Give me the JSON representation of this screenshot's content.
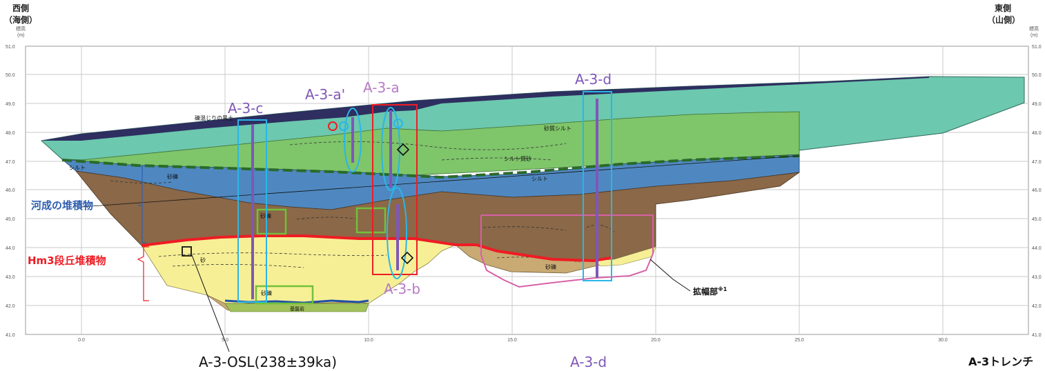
{
  "header": {
    "west_line1": "西側",
    "west_line2": "（海側）",
    "east_line1": "東側",
    "east_line2": "（山側）",
    "elev_label_line1": "標高",
    "elev_label_line2": "(m)"
  },
  "axes": {
    "y_ticks": [
      "51.0",
      "50.0",
      "49.0",
      "48.0",
      "47.0",
      "46.0",
      "45.0",
      "44.0",
      "43.0",
      "42.0",
      "41.0"
    ],
    "x_ticks": [
      "0.0",
      "5.0",
      "10.0",
      "15.0",
      "20.0",
      "25.0",
      "30.0"
    ]
  },
  "strata": {
    "black_soil": "礫混じりの黒土",
    "sandy_silt": "砂質シルト",
    "silt_sand": "シルト質砂",
    "silt_right": "シルト",
    "silt_left": "シルト",
    "sand_gravel_a": "砂礫",
    "sand_gravel_b": "砂礫",
    "sand_gravel_c": "砂礫",
    "sand_gravel_d": "砂礫",
    "sand": "砂",
    "bedrock": "基盤岩"
  },
  "labels": {
    "fluvial": "河成の堆積物",
    "terrace": "Hm3段丘堆積物",
    "widened": "拡幅部",
    "widened_note": "※1"
  },
  "cores": {
    "a3a": "A-3-a",
    "a3a_prime": "A-3-a'",
    "a3b": "A-3-b",
    "a3c": "A-3-c",
    "a3d": "A-3-d"
  },
  "footer": {
    "osl": "A-3-OSL(238±39ka)",
    "bottom_d": "A-3-d",
    "trench": "A-3トレンチ"
  },
  "colors": {
    "teal_layer": "#6cc8ae",
    "green_layer": "#7fc56a",
    "blue_layer": "#4f88c0",
    "brown_layer": "#8a6848",
    "yellow_layer": "#f6ef96",
    "tan_layer": "#c8aa72",
    "black_soil": "#2e2e60",
    "red_boundary": "#ee1c24",
    "core_purple": "#7e57b8",
    "box_cyan": "#29b6e8",
    "box_green": "#72c13a",
    "box_pink": "#d860a8"
  }
}
